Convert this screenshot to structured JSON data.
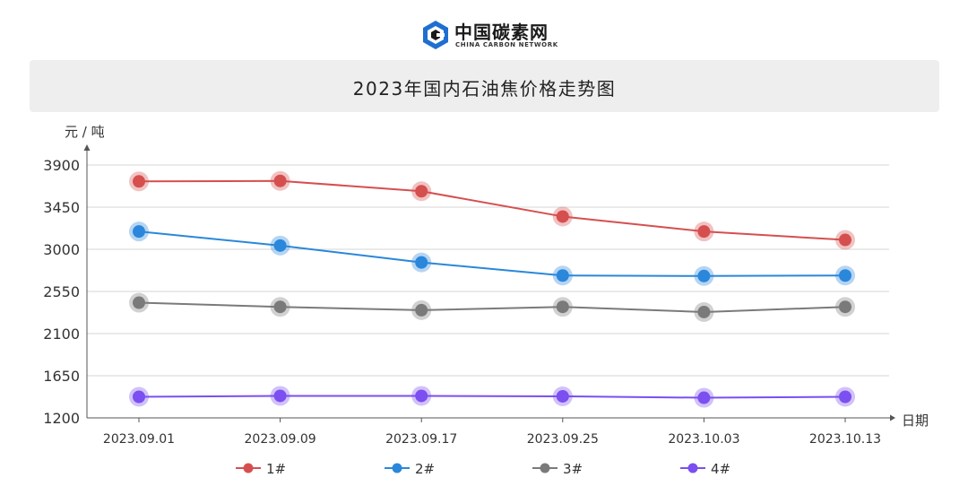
{
  "logo": {
    "cn_text": "中国碳素网",
    "en_text": "CHINA CARBON NETWORK"
  },
  "colors": {
    "brand_blue": "#1f6fd1",
    "series_1": "#d64f4f",
    "series_2": "#2a87db",
    "series_3": "#7a7a7a",
    "series_4": "#7b4ff0"
  },
  "chart_data": {
    "type": "line",
    "title": "2023年国内石油焦价格走势图",
    "xlabel": "日期",
    "ylabel": "元 / 吨",
    "categories": [
      "2023.09.01",
      "2023.09.09",
      "2023.09.17",
      "2023.09.25",
      "2023.10.03",
      "2023.10.13"
    ],
    "yticks": [
      1200,
      1650,
      2100,
      2550,
      3000,
      3450,
      3900
    ],
    "ylim": [
      1200,
      3900
    ],
    "grid": true,
    "legend_position": "bottom",
    "series": [
      {
        "name": "1#",
        "values": [
          3725,
          3730,
          3620,
          3350,
          3190,
          3100
        ]
      },
      {
        "name": "2#",
        "values": [
          3190,
          3040,
          2860,
          2720,
          2715,
          2720
        ]
      },
      {
        "name": "3#",
        "values": [
          2430,
          2385,
          2350,
          2385,
          2330,
          2385
        ]
      },
      {
        "name": "4#",
        "values": [
          1425,
          1435,
          1435,
          1430,
          1415,
          1425
        ]
      }
    ]
  }
}
